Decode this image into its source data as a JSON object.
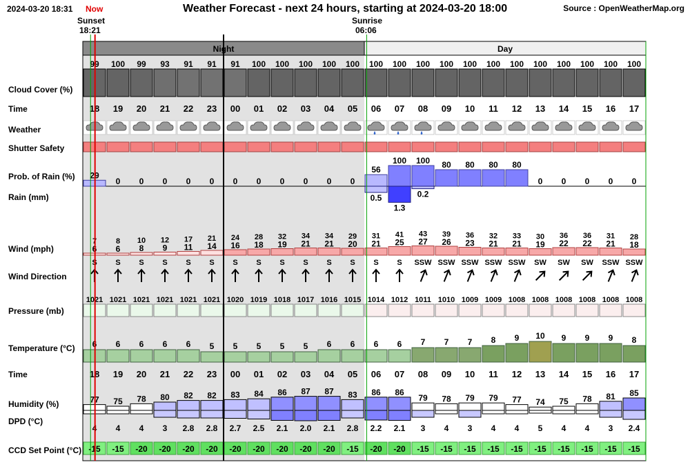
{
  "header": {
    "timestamp": "2024-03-20 18:31",
    "now_label": "Now",
    "title": "Weather Forecast - next 24 hours, starting at 2024-03-20 18:00",
    "source": "Source : OpenWeatherMap.org",
    "sunset_label": "Sunset",
    "sunset_time": "18:21",
    "sunrise_label": "Sunrise",
    "sunrise_time": "06:06"
  },
  "colors": {
    "night_bg": "#e2e2e2",
    "cloud": "#666666",
    "shutter": "#f47f7f",
    "rain_bar": "#8080ff",
    "wind_bar": "#f7a8a8",
    "ccd_green": "#80f080",
    "dpd_bar": "#a0a0ff",
    "border_green": "#00a000",
    "now_red": "#e00000"
  },
  "chart_data": {
    "type": "table",
    "day_night": [
      {
        "label": "Night",
        "from": 0,
        "to": 12
      },
      {
        "label": "Day",
        "from": 12,
        "to": 24
      }
    ],
    "hours": [
      "18",
      "19",
      "20",
      "21",
      "22",
      "23",
      "00",
      "01",
      "02",
      "03",
      "04",
      "05",
      "06",
      "07",
      "08",
      "09",
      "10",
      "11",
      "12",
      "13",
      "14",
      "15",
      "16",
      "17"
    ],
    "cloud_cover": [
      99,
      100,
      99,
      93,
      91,
      91,
      91,
      100,
      100,
      100,
      100,
      100,
      100,
      100,
      100,
      100,
      100,
      100,
      100,
      100,
      100,
      100,
      100,
      100
    ],
    "weather_icons": [
      "cloud",
      "cloud",
      "cloud",
      "cloud",
      "cloud",
      "cloud",
      "cloud",
      "cloud",
      "cloud",
      "cloud",
      "cloud",
      "cloud",
      "cloud-rain",
      "cloud-rain",
      "cloud-rain",
      "cloud",
      "cloud",
      "cloud",
      "cloud",
      "cloud",
      "cloud",
      "cloud",
      "cloud",
      "cloud"
    ],
    "rain_probability": [
      29,
      0,
      0,
      0,
      0,
      0,
      0,
      0,
      0,
      0,
      0,
      0,
      56,
      100,
      100,
      80,
      80,
      80,
      80,
      0,
      0,
      0,
      0,
      0
    ],
    "rain_mm": [
      0,
      0,
      0,
      0,
      0,
      0,
      0,
      0,
      0,
      0,
      0,
      0,
      0.5,
      1.3,
      0.2,
      0,
      0,
      0,
      0,
      0,
      0,
      0,
      0,
      0
    ],
    "rain_mm_labels": [
      "",
      "",
      "",
      "",
      "",
      "",
      "",
      "",
      "",
      "",
      "",
      "",
      "0.5",
      "1.3",
      "0.2",
      "",
      "",
      "",
      "",
      "",
      "",
      "",
      "",
      ""
    ],
    "wind_gust": [
      7,
      8,
      10,
      12,
      17,
      21,
      24,
      28,
      32,
      34,
      34,
      29,
      31,
      41,
      43,
      39,
      36,
      32,
      33,
      30,
      36,
      36,
      31,
      28
    ],
    "wind_speed": [
      6,
      6,
      8,
      9,
      11,
      14,
      16,
      18,
      19,
      21,
      21,
      20,
      21,
      25,
      27,
      26,
      23,
      21,
      21,
      19,
      22,
      22,
      21,
      18
    ],
    "wind_direction": [
      "S",
      "S",
      "S",
      "S",
      "S",
      "S",
      "S",
      "S",
      "S",
      "S",
      "S",
      "S",
      "S",
      "S",
      "SSW",
      "SSW",
      "SSW",
      "SSW",
      "SSW",
      "SW",
      "SW",
      "SW",
      "SSW",
      "SSW"
    ],
    "pressure": [
      1021,
      1021,
      1021,
      1021,
      1021,
      1021,
      1020,
      1019,
      1018,
      1017,
      1016,
      1015,
      1014,
      1012,
      1011,
      1010,
      1009,
      1009,
      1008,
      1008,
      1008,
      1008,
      1008,
      1008
    ],
    "temperature": [
      6,
      6,
      6,
      6,
      6,
      5,
      5,
      5,
      5,
      5,
      6,
      6,
      6,
      6,
      7,
      7,
      7,
      8,
      9,
      10,
      9,
      9,
      9,
      8
    ],
    "humidity": [
      77,
      75,
      78,
      80,
      82,
      82,
      83,
      84,
      86,
      87,
      87,
      83,
      86,
      86,
      79,
      78,
      79,
      79,
      77,
      74,
      75,
      78,
      81,
      85
    ],
    "dpd": [
      4,
      4,
      4,
      3,
      2.8,
      2.8,
      2.7,
      2.5,
      2.1,
      2.0,
      2.1,
      2.8,
      2.2,
      2.1,
      3,
      4,
      3,
      4,
      4,
      5,
      4,
      4,
      3,
      2.4
    ],
    "dpd_labels": [
      "4",
      "4",
      "4",
      "3",
      "2.8",
      "2.8",
      "2.7",
      "2.5",
      "2.1",
      "2.0",
      "2.1",
      "2.8",
      "2.2",
      "2.1",
      "3",
      "4",
      "3",
      "4",
      "4",
      "5",
      "4",
      "4",
      "3",
      "2.4"
    ],
    "ccd_set_point": [
      -15,
      -15,
      -20,
      -20,
      -20,
      -20,
      -20,
      -20,
      -20,
      -20,
      -20,
      -15,
      -20,
      -20,
      -15,
      -15,
      -15,
      -15,
      -15,
      -15,
      -15,
      -15,
      -15,
      -15
    ],
    "row_labels": {
      "cloud_cover": "Cloud Cover (%)",
      "time": "Time",
      "weather": "Weather",
      "shutter": "Shutter Safety",
      "rain_prob": "Prob. of Rain (%)",
      "rain_mm": "Rain (mm)",
      "wind": "Wind (mph)",
      "wind_dir": "Wind Direction",
      "pressure": "Pressure (mb)",
      "temperature": "Temperature (°C)",
      "time2": "Time",
      "humidity": "Humidity (%)",
      "dpd": "DPD (°C)",
      "ccd": "CCD Set Point (°C)"
    }
  }
}
